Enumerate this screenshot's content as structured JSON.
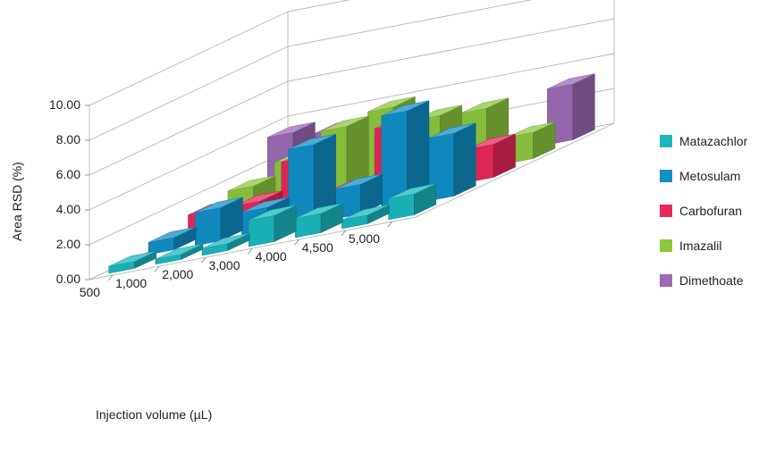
{
  "chart_data": {
    "type": "bar",
    "subtype": "3d-column",
    "title": "",
    "ylabel": "Area RSD (%)",
    "xlabel": "Injection volume (µL)",
    "ylim": [
      0,
      10
    ],
    "yticks": [
      "0.00",
      "2.00",
      "4.00",
      "6.00",
      "8.00",
      "10.00"
    ],
    "categories": [
      "500",
      "1,000",
      "2,000",
      "3,000",
      "4,000",
      "4,500",
      "5,000"
    ],
    "series": [
      {
        "name": "Matazachlor",
        "color": "#1ab8be",
        "values": [
          0.4,
          0.3,
          0.4,
          1.5,
          1.1,
          0.5,
          1.2
        ]
      },
      {
        "name": "Metosulam",
        "color": "#118fc7",
        "values": [
          0.7,
          1.9,
          1.4,
          4.5,
          1.7,
          5.4,
          3.6
        ]
      },
      {
        "name": "Carbofuran",
        "color": "#e8285a",
        "values": [
          1.2,
          1.2,
          3.2,
          1.0,
          4.1,
          2.8,
          1.9
        ]
      },
      {
        "name": "Imazalil",
        "color": "#8dc63f",
        "values": [
          1.5,
          2.6,
          3.9,
          4.5,
          3.5,
          3.4,
          1.5
        ]
      },
      {
        "name": "Dimethoate",
        "color": "#9b6ab4",
        "values": [
          3.5,
          3.2,
          2.6,
          2.3,
          2.6,
          0.6,
          3.2
        ]
      }
    ],
    "grid": true,
    "legend_position": "right"
  }
}
